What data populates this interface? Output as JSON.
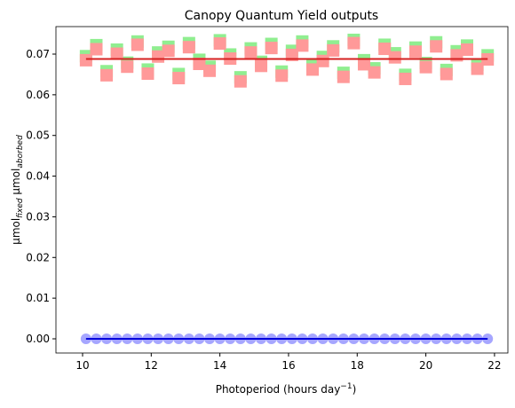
{
  "chart_data": {
    "type": "scatter",
    "title": "Canopy Quantum Yield outputs",
    "xlabel": [
      "Photoperiod (hours day",
      "−1",
      ")"
    ],
    "ylabel": [
      "μmol",
      "fixed",
      " μmol",
      "aborbed"
    ],
    "xlim": [
      9.224,
      22.39
    ],
    "ylim": [
      -0.00349,
      0.07676
    ],
    "xticks": [
      10,
      12,
      14,
      16,
      18,
      20,
      22
    ],
    "yticks": [
      {
        "value": 0,
        "label": "0.00"
      },
      0.01,
      0.02,
      0.03,
      0.04,
      0.05,
      0.06,
      0.07
    ],
    "grid": false,
    "x": [
      10.1,
      10.4,
      10.7,
      11.0,
      11.3,
      11.6,
      11.9,
      12.2,
      12.5,
      12.8,
      13.1,
      13.4,
      13.7,
      14.0,
      14.3,
      14.6,
      14.9,
      15.2,
      15.5,
      15.8,
      16.1,
      16.4,
      16.7,
      17.0,
      17.3,
      17.6,
      17.9,
      18.2,
      18.5,
      18.8,
      19.1,
      19.4,
      19.7,
      20.0,
      20.3,
      20.6,
      20.9,
      21.2,
      21.5,
      21.8
    ],
    "series": [
      {
        "kind": "scatter",
        "marker": "square",
        "color": "#90ee90",
        "values": [
          0.0695,
          0.0722,
          0.0658,
          0.0711,
          0.0679,
          0.0731,
          0.0662,
          0.0704,
          0.0718,
          0.0651,
          0.0727,
          0.0686,
          0.0669,
          0.0734,
          0.0699,
          0.0643,
          0.0714,
          0.0681,
          0.0725,
          0.0657,
          0.0708,
          0.0731,
          0.0672,
          0.0693,
          0.0719,
          0.0654,
          0.0735,
          0.0685,
          0.0665,
          0.0723,
          0.0702,
          0.0649,
          0.0716,
          0.0678,
          0.0729,
          0.0661,
          0.0707,
          0.0721,
          0.0674,
          0.0697
        ]
      },
      {
        "kind": "scatter",
        "marker": "square",
        "color": "#ff9999",
        "values": [
          0.0685,
          0.0712,
          0.0648,
          0.0701,
          0.0669,
          0.0723,
          0.0652,
          0.0694,
          0.0708,
          0.0641,
          0.0717,
          0.0676,
          0.0659,
          0.0726,
          0.0689,
          0.0633,
          0.0704,
          0.0671,
          0.0715,
          0.0647,
          0.0698,
          0.0721,
          0.0662,
          0.0683,
          0.0709,
          0.0644,
          0.0727,
          0.0675,
          0.0655,
          0.0713,
          0.0692,
          0.0639,
          0.0706,
          0.0668,
          0.0719,
          0.0651,
          0.0697,
          0.0711,
          0.0664,
          0.0687
        ]
      },
      {
        "kind": "line",
        "color": "#d62020",
        "x": [
          10.1,
          21.8
        ],
        "values": [
          0.0688,
          0.0688
        ]
      },
      {
        "kind": "scatter",
        "marker": "circle",
        "color": "#8080ff",
        "values": [
          0,
          0,
          0,
          0,
          0,
          0,
          0,
          0,
          0,
          0,
          0,
          0,
          0,
          0,
          0,
          0,
          0,
          0,
          0,
          0,
          0,
          0,
          0,
          0,
          0,
          0,
          0,
          0,
          0,
          0,
          0,
          0,
          0,
          0,
          0,
          0,
          0,
          0,
          0,
          0
        ]
      },
      {
        "kind": "line",
        "color": "#0000dd",
        "x": [
          10.1,
          21.8
        ],
        "values": [
          0,
          0
        ]
      }
    ]
  }
}
